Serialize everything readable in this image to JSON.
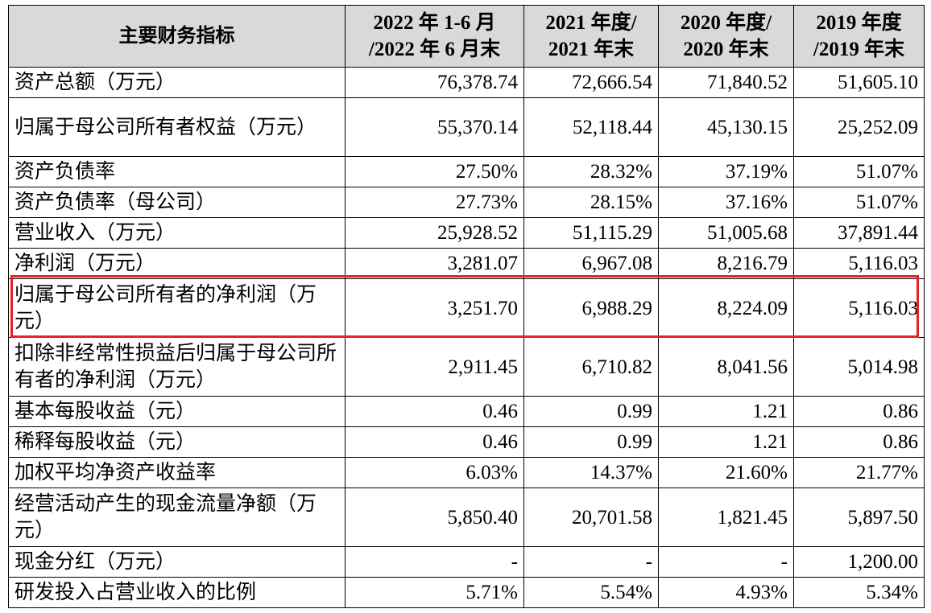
{
  "table": {
    "headers": [
      {
        "line1": "主要财务指标",
        "line2": ""
      },
      {
        "line1": "2022 年 1-6 月",
        "line2": "/2022 年 6 月末"
      },
      {
        "line1": "2021 年度/",
        "line2": "2021 年末"
      },
      {
        "line1": "2020 年度/",
        "line2": "2020 年末"
      },
      {
        "line1": "2019 年度",
        "line2": "/2019 年末"
      }
    ],
    "rows": [
      {
        "label": "资产总额（万元）",
        "values": [
          "76,378.74",
          "72,666.54",
          "71,840.52",
          "51,605.10"
        ],
        "lines": 1
      },
      {
        "label": "归属于母公司所有者权益（万元）",
        "values": [
          "55,370.14",
          "52,118.44",
          "45,130.15",
          "25,252.09"
        ],
        "lines": 2
      },
      {
        "label": "资产负债率",
        "values": [
          "27.50%",
          "28.32%",
          "37.19%",
          "51.07%"
        ],
        "lines": 1
      },
      {
        "label": "资产负债率（母公司）",
        "values": [
          "27.73%",
          "28.15%",
          "37.16%",
          "51.07%"
        ],
        "lines": 1
      },
      {
        "label": "营业收入（万元）",
        "values": [
          "25,928.52",
          "51,115.29",
          "51,005.68",
          "37,891.44"
        ],
        "lines": 1
      },
      {
        "label": "净利润（万元）",
        "values": [
          "3,281.07",
          "6,967.08",
          "8,216.79",
          "5,116.03"
        ],
        "lines": 1
      },
      {
        "label": "归属于母公司所有者的净利润（万元）",
        "values": [
          "3,251.70",
          "6,988.29",
          "8,224.09",
          "5,116.03"
        ],
        "lines": 2,
        "highlighted": true
      },
      {
        "label": "扣除非经常性损益后归属于母公司所有者的净利润（万元）",
        "values": [
          "2,911.45",
          "6,710.82",
          "8,041.56",
          "5,014.98"
        ],
        "lines": 2
      },
      {
        "label": "基本每股收益（元）",
        "values": [
          "0.46",
          "0.99",
          "1.21",
          "0.86"
        ],
        "lines": 1
      },
      {
        "label": "稀释每股收益（元）",
        "values": [
          "0.46",
          "0.99",
          "1.21",
          "0.86"
        ],
        "lines": 1
      },
      {
        "label": "加权平均净资产收益率",
        "values": [
          "6.03%",
          "14.37%",
          "21.60%",
          "21.77%"
        ],
        "lines": 1
      },
      {
        "label": "经营活动产生的现金流量净额（万元）",
        "values": [
          "5,850.40",
          "20,701.58",
          "1,821.45",
          "5,897.50"
        ],
        "lines": 2
      },
      {
        "label": "现金分红（万元）",
        "values": [
          "-",
          "-",
          "-",
          "1,200.00"
        ],
        "lines": 1
      },
      {
        "label": "研发投入占营业收入的比例",
        "values": [
          "5.71%",
          "5.54%",
          "4.93%",
          "5.34%"
        ],
        "lines": 1
      }
    ]
  },
  "colors": {
    "highlight_border": "#e8202a",
    "header_bg": "#d9d9d9"
  }
}
